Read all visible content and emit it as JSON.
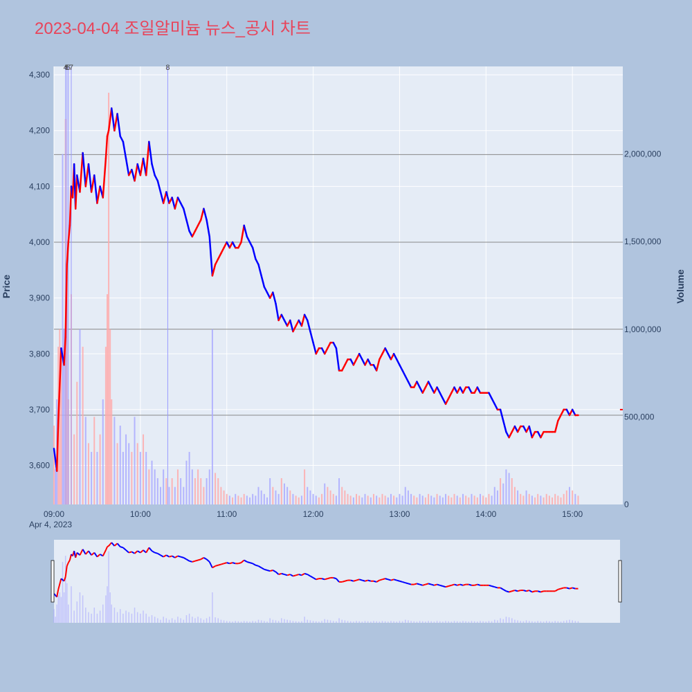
{
  "chart_data": {
    "type": "candlestick",
    "title": "2023-04-04 조일알미늄 뉴스_공시 차트",
    "ylabel": "Price",
    "y2label": "Volume",
    "date_label": "Apr 4, 2023",
    "x_ticks": [
      "09:00",
      "10:00",
      "11:00",
      "12:00",
      "13:00",
      "14:00",
      "15:00"
    ],
    "x_range_minutes": [
      0,
      395
    ],
    "y_ticks": [
      3600,
      3700,
      3800,
      3900,
      4000,
      4100,
      4200,
      4300
    ],
    "y_range": [
      3530,
      4315
    ],
    "y2_ticks": [
      0,
      500000,
      1000000,
      1500000,
      2000000
    ],
    "y2_tick_labels": [
      "0",
      "500,000",
      "1,000,000",
      "1,500,000",
      "2,000,000"
    ],
    "y2_range": [
      0,
      2500000
    ],
    "price_path": [
      [
        0,
        3630
      ],
      [
        2,
        3590
      ],
      [
        3,
        3680
      ],
      [
        5,
        3810
      ],
      [
        7,
        3780
      ],
      [
        8,
        3830
      ],
      [
        9,
        3960
      ],
      [
        10,
        4000
      ],
      [
        11,
        4030
      ],
      [
        12,
        4100
      ],
      [
        13,
        4080
      ],
      [
        14,
        4140
      ],
      [
        15,
        4060
      ],
      [
        16,
        4120
      ],
      [
        18,
        4090
      ],
      [
        20,
        4160
      ],
      [
        22,
        4100
      ],
      [
        24,
        4140
      ],
      [
        26,
        4090
      ],
      [
        28,
        4120
      ],
      [
        30,
        4070
      ],
      [
        32,
        4100
      ],
      [
        34,
        4080
      ],
      [
        36,
        4150
      ],
      [
        37,
        4190
      ],
      [
        38,
        4200
      ],
      [
        39,
        4220
      ],
      [
        40,
        4240
      ],
      [
        42,
        4200
      ],
      [
        44,
        4230
      ],
      [
        46,
        4190
      ],
      [
        48,
        4180
      ],
      [
        50,
        4150
      ],
      [
        52,
        4120
      ],
      [
        54,
        4130
      ],
      [
        56,
        4110
      ],
      [
        58,
        4140
      ],
      [
        60,
        4120
      ],
      [
        62,
        4150
      ],
      [
        64,
        4120
      ],
      [
        66,
        4180
      ],
      [
        68,
        4140
      ],
      [
        70,
        4120
      ],
      [
        72,
        4110
      ],
      [
        74,
        4090
      ],
      [
        76,
        4070
      ],
      [
        78,
        4090
      ],
      [
        80,
        4070
      ],
      [
        82,
        4080
      ],
      [
        84,
        4060
      ],
      [
        86,
        4080
      ],
      [
        88,
        4070
      ],
      [
        90,
        4060
      ],
      [
        92,
        4040
      ],
      [
        94,
        4020
      ],
      [
        96,
        4010
      ],
      [
        98,
        4020
      ],
      [
        100,
        4030
      ],
      [
        102,
        4040
      ],
      [
        104,
        4060
      ],
      [
        106,
        4040
      ],
      [
        108,
        4010
      ],
      [
        110,
        3940
      ],
      [
        112,
        3960
      ],
      [
        114,
        3970
      ],
      [
        116,
        3980
      ],
      [
        118,
        3990
      ],
      [
        120,
        4000
      ],
      [
        122,
        3990
      ],
      [
        124,
        4000
      ],
      [
        126,
        3990
      ],
      [
        128,
        3990
      ],
      [
        130,
        4000
      ],
      [
        132,
        4030
      ],
      [
        134,
        4010
      ],
      [
        136,
        4000
      ],
      [
        138,
        3990
      ],
      [
        140,
        3970
      ],
      [
        142,
        3960
      ],
      [
        144,
        3940
      ],
      [
        146,
        3920
      ],
      [
        148,
        3910
      ],
      [
        150,
        3900
      ],
      [
        152,
        3910
      ],
      [
        154,
        3890
      ],
      [
        156,
        3860
      ],
      [
        158,
        3870
      ],
      [
        160,
        3860
      ],
      [
        162,
        3850
      ],
      [
        164,
        3860
      ],
      [
        166,
        3840
      ],
      [
        168,
        3850
      ],
      [
        170,
        3860
      ],
      [
        172,
        3850
      ],
      [
        174,
        3870
      ],
      [
        176,
        3860
      ],
      [
        178,
        3840
      ],
      [
        180,
        3820
      ],
      [
        182,
        3800
      ],
      [
        184,
        3810
      ],
      [
        186,
        3810
      ],
      [
        188,
        3800
      ],
      [
        190,
        3810
      ],
      [
        192,
        3820
      ],
      [
        194,
        3820
      ],
      [
        196,
        3810
      ],
      [
        198,
        3770
      ],
      [
        200,
        3770
      ],
      [
        202,
        3780
      ],
      [
        204,
        3790
      ],
      [
        206,
        3790
      ],
      [
        208,
        3780
      ],
      [
        210,
        3790
      ],
      [
        212,
        3800
      ],
      [
        214,
        3790
      ],
      [
        216,
        3780
      ],
      [
        218,
        3790
      ],
      [
        220,
        3780
      ],
      [
        222,
        3780
      ],
      [
        224,
        3770
      ],
      [
        226,
        3790
      ],
      [
        228,
        3800
      ],
      [
        230,
        3810
      ],
      [
        232,
        3800
      ],
      [
        234,
        3790
      ],
      [
        236,
        3800
      ],
      [
        238,
        3790
      ],
      [
        240,
        3780
      ],
      [
        242,
        3770
      ],
      [
        244,
        3760
      ],
      [
        246,
        3750
      ],
      [
        248,
        3740
      ],
      [
        250,
        3740
      ],
      [
        252,
        3750
      ],
      [
        254,
        3740
      ],
      [
        256,
        3730
      ],
      [
        258,
        3740
      ],
      [
        260,
        3750
      ],
      [
        262,
        3740
      ],
      [
        264,
        3730
      ],
      [
        266,
        3740
      ],
      [
        268,
        3730
      ],
      [
        270,
        3720
      ],
      [
        272,
        3710
      ],
      [
        274,
        3720
      ],
      [
        276,
        3730
      ],
      [
        278,
        3740
      ],
      [
        280,
        3730
      ],
      [
        282,
        3740
      ],
      [
        284,
        3730
      ],
      [
        286,
        3740
      ],
      [
        288,
        3740
      ],
      [
        290,
        3730
      ],
      [
        292,
        3730
      ],
      [
        294,
        3740
      ],
      [
        296,
        3730
      ],
      [
        298,
        3730
      ],
      [
        300,
        3730
      ],
      [
        302,
        3730
      ],
      [
        304,
        3720
      ],
      [
        306,
        3710
      ],
      [
        308,
        3700
      ],
      [
        310,
        3700
      ],
      [
        312,
        3680
      ],
      [
        314,
        3660
      ],
      [
        316,
        3650
      ],
      [
        318,
        3660
      ],
      [
        320,
        3670
      ],
      [
        322,
        3660
      ],
      [
        324,
        3670
      ],
      [
        326,
        3670
      ],
      [
        328,
        3660
      ],
      [
        330,
        3670
      ],
      [
        332,
        3650
      ],
      [
        334,
        3660
      ],
      [
        336,
        3660
      ],
      [
        338,
        3650
      ],
      [
        340,
        3660
      ],
      [
        342,
        3660
      ],
      [
        344,
        3660
      ],
      [
        346,
        3660
      ],
      [
        348,
        3660
      ],
      [
        350,
        3680
      ],
      [
        352,
        3690
      ],
      [
        354,
        3700
      ],
      [
        356,
        3700
      ],
      [
        358,
        3690
      ],
      [
        360,
        3700
      ],
      [
        362,
        3690
      ],
      [
        364,
        3690
      ]
    ],
    "volume_path": [
      [
        0,
        450000
      ],
      [
        1,
        200000
      ],
      [
        2,
        600000
      ],
      [
        3,
        900000
      ],
      [
        4,
        1000000
      ],
      [
        5,
        850000
      ],
      [
        6,
        2000000
      ],
      [
        7,
        1000000
      ],
      [
        8,
        2200000
      ],
      [
        9,
        1300000
      ],
      [
        10,
        600000
      ],
      [
        12,
        1200000
      ],
      [
        14,
        400000
      ],
      [
        16,
        700000
      ],
      [
        18,
        1000000
      ],
      [
        20,
        900000
      ],
      [
        22,
        500000
      ],
      [
        24,
        350000
      ],
      [
        26,
        300000
      ],
      [
        28,
        500000
      ],
      [
        30,
        300000
      ],
      [
        32,
        400000
      ],
      [
        34,
        600000
      ],
      [
        36,
        900000
      ],
      [
        37,
        1200000
      ],
      [
        38,
        2350000
      ],
      [
        39,
        1000000
      ],
      [
        40,
        600000
      ],
      [
        42,
        500000
      ],
      [
        44,
        350000
      ],
      [
        46,
        450000
      ],
      [
        48,
        300000
      ],
      [
        50,
        400000
      ],
      [
        52,
        350000
      ],
      [
        54,
        300000
      ],
      [
        56,
        500000
      ],
      [
        58,
        350000
      ],
      [
        60,
        300000
      ],
      [
        62,
        400000
      ],
      [
        64,
        300000
      ],
      [
        66,
        200000
      ],
      [
        68,
        250000
      ],
      [
        70,
        200000
      ],
      [
        72,
        150000
      ],
      [
        74,
        100000
      ],
      [
        76,
        200000
      ],
      [
        78,
        150000
      ],
      [
        80,
        100000
      ],
      [
        82,
        150000
      ],
      [
        84,
        100000
      ],
      [
        86,
        200000
      ],
      [
        88,
        150000
      ],
      [
        90,
        100000
      ],
      [
        92,
        250000
      ],
      [
        94,
        300000
      ],
      [
        96,
        200000
      ],
      [
        98,
        150000
      ],
      [
        100,
        200000
      ],
      [
        102,
        150000
      ],
      [
        104,
        100000
      ],
      [
        106,
        150000
      ],
      [
        108,
        200000
      ],
      [
        110,
        1000000
      ],
      [
        112,
        180000
      ],
      [
        114,
        150000
      ],
      [
        116,
        100000
      ],
      [
        118,
        80000
      ],
      [
        120,
        60000
      ],
      [
        122,
        50000
      ],
      [
        124,
        40000
      ],
      [
        126,
        60000
      ],
      [
        128,
        50000
      ],
      [
        130,
        40000
      ],
      [
        132,
        60000
      ],
      [
        134,
        50000
      ],
      [
        136,
        40000
      ],
      [
        138,
        60000
      ],
      [
        140,
        50000
      ],
      [
        142,
        100000
      ],
      [
        144,
        80000
      ],
      [
        146,
        60000
      ],
      [
        148,
        40000
      ],
      [
        150,
        150000
      ],
      [
        152,
        100000
      ],
      [
        154,
        80000
      ],
      [
        156,
        60000
      ],
      [
        158,
        150000
      ],
      [
        160,
        120000
      ],
      [
        162,
        100000
      ],
      [
        164,
        80000
      ],
      [
        166,
        60000
      ],
      [
        168,
        50000
      ],
      [
        170,
        40000
      ],
      [
        172,
        50000
      ],
      [
        174,
        200000
      ],
      [
        176,
        100000
      ],
      [
        178,
        80000
      ],
      [
        180,
        60000
      ],
      [
        182,
        50000
      ],
      [
        184,
        40000
      ],
      [
        186,
        60000
      ],
      [
        188,
        120000
      ],
      [
        190,
        100000
      ],
      [
        192,
        80000
      ],
      [
        194,
        60000
      ],
      [
        196,
        50000
      ],
      [
        198,
        150000
      ],
      [
        200,
        100000
      ],
      [
        202,
        80000
      ],
      [
        204,
        60000
      ],
      [
        206,
        50000
      ],
      [
        208,
        40000
      ],
      [
        210,
        60000
      ],
      [
        212,
        50000
      ],
      [
        214,
        40000
      ],
      [
        216,
        60000
      ],
      [
        218,
        50000
      ],
      [
        220,
        40000
      ],
      [
        222,
        60000
      ],
      [
        224,
        50000
      ],
      [
        226,
        40000
      ],
      [
        228,
        60000
      ],
      [
        230,
        50000
      ],
      [
        232,
        40000
      ],
      [
        234,
        60000
      ],
      [
        236,
        50000
      ],
      [
        238,
        40000
      ],
      [
        240,
        60000
      ],
      [
        242,
        50000
      ],
      [
        244,
        100000
      ],
      [
        246,
        80000
      ],
      [
        248,
        60000
      ],
      [
        250,
        50000
      ],
      [
        252,
        40000
      ],
      [
        254,
        60000
      ],
      [
        256,
        50000
      ],
      [
        258,
        40000
      ],
      [
        260,
        60000
      ],
      [
        262,
        50000
      ],
      [
        264,
        40000
      ],
      [
        266,
        60000
      ],
      [
        268,
        50000
      ],
      [
        270,
        40000
      ],
      [
        272,
        60000
      ],
      [
        274,
        50000
      ],
      [
        276,
        40000
      ],
      [
        278,
        60000
      ],
      [
        280,
        50000
      ],
      [
        282,
        40000
      ],
      [
        284,
        60000
      ],
      [
        286,
        50000
      ],
      [
        288,
        40000
      ],
      [
        290,
        60000
      ],
      [
        292,
        50000
      ],
      [
        294,
        40000
      ],
      [
        296,
        60000
      ],
      [
        298,
        50000
      ],
      [
        300,
        40000
      ],
      [
        302,
        60000
      ],
      [
        304,
        50000
      ],
      [
        306,
        100000
      ],
      [
        308,
        80000
      ],
      [
        310,
        150000
      ],
      [
        312,
        120000
      ],
      [
        314,
        200000
      ],
      [
        316,
        180000
      ],
      [
        318,
        150000
      ],
      [
        320,
        100000
      ],
      [
        322,
        80000
      ],
      [
        324,
        60000
      ],
      [
        326,
        50000
      ],
      [
        328,
        80000
      ],
      [
        330,
        60000
      ],
      [
        332,
        50000
      ],
      [
        334,
        40000
      ],
      [
        336,
        60000
      ],
      [
        338,
        50000
      ],
      [
        340,
        40000
      ],
      [
        342,
        60000
      ],
      [
        344,
        50000
      ],
      [
        346,
        40000
      ],
      [
        348,
        60000
      ],
      [
        350,
        50000
      ],
      [
        352,
        40000
      ],
      [
        354,
        60000
      ],
      [
        356,
        80000
      ],
      [
        358,
        100000
      ],
      [
        360,
        80000
      ],
      [
        362,
        60000
      ],
      [
        364,
        50000
      ]
    ],
    "news_markers": [
      {
        "label": "4",
        "minute": 8
      },
      {
        "label": "5",
        "minute": 9
      },
      {
        "label": "6",
        "minute": 10
      },
      {
        "label": "7",
        "minute": 12
      },
      {
        "label": "8",
        "minute": 79
      }
    ],
    "reference_lines": [
      3690,
      3844,
      4000,
      4157
    ],
    "close_marker_minute": 394,
    "close_marker_price": 3700
  },
  "colors": {
    "up": "#ff0000",
    "down": "#0000ff",
    "title": "#e8445a",
    "plot_bg": "#e5ecf6",
    "page_bg": "#b0c4de",
    "grid": "#ffffff",
    "ref_line": "#888888",
    "vol_up": "#ffaaaa",
    "vol_down": "#aaaaff",
    "news_line": "#9999ff"
  }
}
